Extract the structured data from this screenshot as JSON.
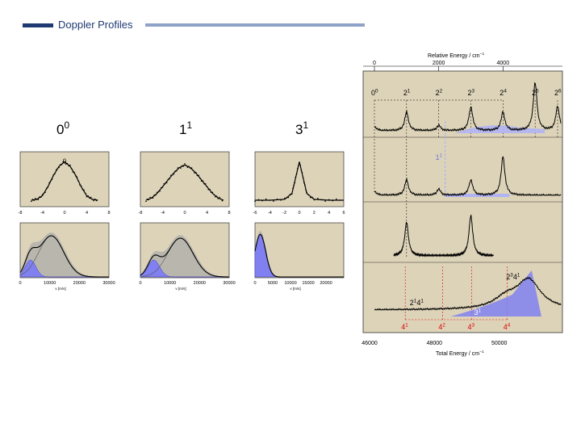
{
  "header": {
    "title": "Doppler Profiles",
    "rule_color": "#1f3a73",
    "rule_fade_color": "#8fa3c8"
  },
  "colors": {
    "panel_bg": "#ddd3b8",
    "fill_blue": "#8080f0",
    "fill_blue_light": "#b0b4f4",
    "grey_band": "#a9a9a9",
    "trace": "#000000",
    "red_guide": "#e00000",
    "frame": "#333333"
  },
  "chart_data": [
    {
      "id": "doppler-00",
      "type": "line",
      "label_base": "0",
      "label_sup": "0",
      "top": {
        "xlim": [
          -8,
          8
        ],
        "xticks": [
          "-8",
          "-4",
          "0",
          "4",
          "8"
        ],
        "x": [
          -6,
          -5,
          -4,
          -3,
          -2,
          -1,
          0,
          1,
          2,
          3,
          4,
          5,
          6
        ],
        "y": [
          0.0,
          0.02,
          0.1,
          0.3,
          0.55,
          0.75,
          0.85,
          0.75,
          0.55,
          0.3,
          0.1,
          0.02,
          0.0
        ],
        "peak_marker": "0"
      },
      "bottom": {
        "xlim": [
          0,
          30000
        ],
        "xticks": [
          "0",
          "10000",
          "20000",
          "30000"
        ],
        "xlabel": "v [m/s]",
        "components": [
          {
            "center": 3500,
            "width": 1800,
            "amp": 0.35,
            "filled": true
          },
          {
            "center": 10500,
            "width": 4200,
            "amp": 0.85,
            "filled": false
          }
        ]
      }
    },
    {
      "id": "doppler-11",
      "type": "line",
      "label_base": "1",
      "label_sup": "1",
      "top": {
        "xlim": [
          -8,
          8
        ],
        "xticks": [
          "-8",
          "-4",
          "0",
          "4",
          "8"
        ],
        "x": [
          -7,
          -6,
          -5,
          -4,
          -3,
          -2,
          -1,
          0,
          1,
          2,
          3,
          4,
          5,
          6,
          7
        ],
        "y": [
          0.0,
          0.05,
          0.15,
          0.3,
          0.45,
          0.6,
          0.72,
          0.78,
          0.72,
          0.6,
          0.45,
          0.3,
          0.15,
          0.05,
          0.0
        ]
      },
      "bottom": {
        "xlim": [
          0,
          30000
        ],
        "xticks": [
          "0",
          "10000",
          "20000",
          "30000"
        ],
        "xlabel": "v [m/s]",
        "components": [
          {
            "center": 4500,
            "width": 2000,
            "amp": 0.35,
            "filled": true
          },
          {
            "center": 13500,
            "width": 4300,
            "amp": 0.8,
            "filled": false
          }
        ]
      }
    },
    {
      "id": "doppler-31",
      "type": "line",
      "label_base": "3",
      "label_sup": "1",
      "top": {
        "xlim": [
          -6,
          6
        ],
        "xticks": [
          "-6",
          "-4",
          "-2",
          "0",
          "2",
          "4",
          "6"
        ],
        "x": [
          -6,
          -4,
          -2,
          -1,
          -0.5,
          0,
          0.5,
          1,
          2,
          4,
          6
        ],
        "y": [
          0.0,
          0.0,
          0.02,
          0.15,
          0.5,
          0.85,
          0.5,
          0.15,
          0.02,
          0.0,
          0.0
        ]
      },
      "bottom": {
        "xlim": [
          0,
          25000
        ],
        "xticks": [
          "0",
          "5000",
          "10000",
          "15000",
          "20000"
        ],
        "xlabel": "v [m/s]",
        "components": [
          {
            "center": 1500,
            "width": 1500,
            "amp": 0.88,
            "filled": true
          }
        ]
      }
    },
    {
      "id": "spectra",
      "type": "line",
      "top_axis": {
        "label": "Relative Energy / cm",
        "label_sup": "−1",
        "xlim": [
          0,
          5800
        ],
        "ticks": [
          0,
          2000,
          4000
        ],
        "tick_labels": [
          "0",
          "2000",
          "4000"
        ]
      },
      "bottom_axis": {
        "label": "Total Energy / cm",
        "label_sup": "−1",
        "xlim": [
          46000,
          51800
        ],
        "ticks": [
          46000,
          48000,
          50000
        ],
        "tick_labels": [
          "46000",
          "48000",
          "50000"
        ]
      },
      "progression_2": [
        {
          "base": "0",
          "sup": "0",
          "rel": 0
        },
        {
          "base": "2",
          "sup": "1",
          "rel": 1000
        },
        {
          "base": "2",
          "sup": "2",
          "rel": 2000
        },
        {
          "base": "2",
          "sup": "3",
          "rel": 3000
        },
        {
          "base": "2",
          "sup": "4",
          "rel": 4000
        },
        {
          "base": "2",
          "sup": "5",
          "rel": 5000
        },
        {
          "base": "2",
          "sup": "6",
          "rel": 5700
        }
      ],
      "progression_4": [
        {
          "base": "4",
          "sup": "1",
          "total": 47100
        },
        {
          "base": "4",
          "sup": "2",
          "total": 48250
        },
        {
          "base": "4",
          "sup": "3",
          "total": 49150
        },
        {
          "base": "4",
          "sup": "4",
          "total": 50250
        }
      ],
      "traces": [
        {
          "panel": 0,
          "peaks": [
            [
              0,
              0.08
            ],
            [
              1000,
              0.35
            ],
            [
              2000,
              0.1
            ],
            [
              3000,
              0.45
            ],
            [
              4000,
              0.35
            ],
            [
              5000,
              0.9
            ],
            [
              5700,
              0.45
            ]
          ]
        },
        {
          "panel": 1,
          "peaks": [
            [
              0,
              0.08
            ],
            [
              1000,
              0.3
            ],
            [
              2000,
              0.12
            ],
            [
              3000,
              0.3
            ],
            [
              4000,
              0.75
            ]
          ]
        },
        {
          "panel": 2,
          "peaks": [
            [
              1000,
              0.7
            ],
            [
              3000,
              0.85
            ]
          ]
        },
        {
          "panel": 3,
          "peaks": [
            [
              4100,
              0.25
            ],
            [
              4800,
              0.7
            ]
          ]
        }
      ],
      "annotations": [
        {
          "panel": 1,
          "base": "1",
          "sup": "1"
        },
        {
          "panel": 3,
          "base": "2",
          "sup": "3",
          "base2": "4",
          "sup2": "1"
        },
        {
          "panel": 3,
          "base": "2",
          "sup": "1",
          "base2": "4",
          "sup2": "1"
        },
        {
          "panel": 3,
          "base": "3",
          "sup": "1"
        }
      ]
    }
  ]
}
